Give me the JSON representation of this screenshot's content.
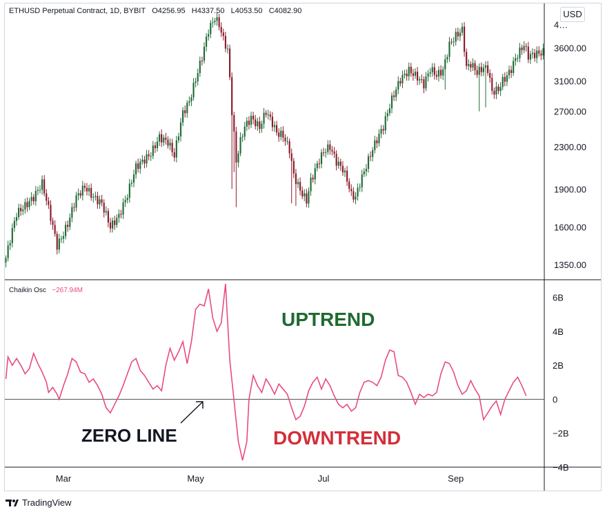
{
  "header": {
    "symbol": "ETHUSD Perpetual Contract, 1D, BYBIT",
    "ohlc_open": "O4256.95",
    "ohlc_high": "H4337.50",
    "ohlc_low": "L4053.50",
    "ohlc_close": "C4082.90",
    "currency_button": "USD"
  },
  "indicator": {
    "name": "Chaikin Osc",
    "value": "−267.94M",
    "color": "#e84a82"
  },
  "annotations": {
    "uptrend": "UPTREND",
    "downtrend": "DOWNTREND",
    "zero_line": "ZERO LINE",
    "uptrend_color": "#1e6a30",
    "downtrend_color": "#d32f3a"
  },
  "colors": {
    "up": "#26a69a_dark",
    "bull": "#1f6b36",
    "bear": "#8b1a2b",
    "osc": "#e84a82"
  },
  "branding": {
    "name": "TradingView"
  },
  "chart_data": [
    {
      "type": "candlestick",
      "title": "ETHUSD Perpetual Contract, 1D, BYBIT",
      "y_scale": "log",
      "ylim": [
        1260,
        4400
      ],
      "y_ticks": [
        "4…",
        "3600.00",
        "3100.00",
        "2700.00",
        "2300.00",
        "1900.00",
        "1600.00",
        "1350.00"
      ],
      "y_tick_values": [
        4000,
        3600,
        3100,
        2700,
        2300,
        1900,
        1600,
        1350
      ],
      "x_ticks": [
        "Mar",
        "May",
        "Jul",
        "Sep"
      ],
      "x_tick_index": [
        27,
        89,
        149,
        211
      ],
      "days": 253,
      "close_anchors": [
        [
          0,
          1390
        ],
        [
          5,
          1700
        ],
        [
          9,
          1760
        ],
        [
          13,
          1830
        ],
        [
          17,
          1950
        ],
        [
          20,
          1740
        ],
        [
          24,
          1470
        ],
        [
          26,
          1520
        ],
        [
          29,
          1620
        ],
        [
          33,
          1830
        ],
        [
          37,
          1920
        ],
        [
          41,
          1830
        ],
        [
          45,
          1780
        ],
        [
          49,
          1600
        ],
        [
          53,
          1680
        ],
        [
          57,
          1850
        ],
        [
          61,
          2100
        ],
        [
          65,
          2170
        ],
        [
          68,
          2230
        ],
        [
          72,
          2400
        ],
        [
          76,
          2350
        ],
        [
          79,
          2210
        ],
        [
          83,
          2680
        ],
        [
          86,
          2820
        ],
        [
          89,
          3120
        ],
        [
          92,
          3450
        ],
        [
          95,
          3900
        ],
        [
          98,
          4120
        ],
        [
          100,
          4000
        ],
        [
          102,
          3740
        ],
        [
          104,
          3560
        ],
        [
          106,
          2700
        ],
        [
          108,
          2150
        ],
        [
          110,
          2360
        ],
        [
          112,
          2520
        ],
        [
          115,
          2620
        ],
        [
          119,
          2510
        ],
        [
          122,
          2700
        ],
        [
          125,
          2560
        ],
        [
          127,
          2450
        ],
        [
          130,
          2420
        ],
        [
          133,
          2270
        ],
        [
          135,
          2020
        ],
        [
          138,
          1890
        ],
        [
          141,
          1800
        ],
        [
          143,
          1970
        ],
        [
          146,
          2120
        ],
        [
          149,
          2250
        ],
        [
          152,
          2300
        ],
        [
          155,
          2150
        ],
        [
          158,
          2080
        ],
        [
          160,
          1980
        ],
        [
          162,
          1850
        ],
        [
          164,
          1830
        ],
        [
          166,
          1950
        ],
        [
          169,
          2110
        ],
        [
          173,
          2330
        ],
        [
          177,
          2520
        ],
        [
          181,
          2850
        ],
        [
          185,
          3120
        ],
        [
          189,
          3250
        ],
        [
          193,
          3150
        ],
        [
          196,
          3050
        ],
        [
          199,
          3270
        ],
        [
          202,
          3180
        ],
        [
          205,
          3250
        ],
        [
          208,
          3650
        ],
        [
          211,
          3800
        ],
        [
          214,
          3900
        ],
        [
          216,
          3290
        ],
        [
          218,
          3350
        ],
        [
          221,
          3220
        ],
        [
          224,
          3290
        ],
        [
          226,
          3270
        ],
        [
          228,
          2950
        ],
        [
          231,
          2980
        ],
        [
          233,
          3100
        ],
        [
          235,
          3170
        ],
        [
          237,
          3270
        ],
        [
          239,
          3430
        ],
        [
          241,
          3540
        ],
        [
          243,
          3650
        ],
        [
          245,
          3470
        ]
      ],
      "spikes": [
        [
          106,
          1900
        ],
        [
          107,
          2050
        ],
        [
          108,
          1750
        ],
        [
          134,
          1780
        ],
        [
          136,
          1760
        ],
        [
          206,
          2980
        ],
        [
          222,
          2700
        ],
        [
          225,
          2750
        ]
      ]
    },
    {
      "type": "line",
      "name": "Chaikin Osc",
      "unit": "B",
      "ylim": [
        -4,
        7
      ],
      "y_ticks": [
        "6B",
        "4B",
        "2B",
        "0",
        "−2B",
        "−4B"
      ],
      "y_tick_values": [
        6,
        4,
        2,
        0,
        -2,
        -4
      ],
      "values_by_day": [
        [
          0,
          1.2
        ],
        [
          1,
          2.5
        ],
        [
          3,
          2.0
        ],
        [
          5,
          2.4
        ],
        [
          7,
          2.0
        ],
        [
          9,
          1.5
        ],
        [
          11,
          1.8
        ],
        [
          13,
          2.7
        ],
        [
          15,
          2.1
        ],
        [
          17,
          1.6
        ],
        [
          19,
          1.0
        ],
        [
          20,
          0.4
        ],
        [
          22,
          0.7
        ],
        [
          24,
          0.3
        ],
        [
          25,
          0.0
        ],
        [
          27,
          0.8
        ],
        [
          29,
          1.5
        ],
        [
          31,
          2.4
        ],
        [
          33,
          2.2
        ],
        [
          35,
          1.6
        ],
        [
          37,
          1.5
        ],
        [
          39,
          1.0
        ],
        [
          41,
          1.2
        ],
        [
          43,
          0.8
        ],
        [
          45,
          0.3
        ],
        [
          47,
          -0.5
        ],
        [
          49,
          -0.8
        ],
        [
          51,
          -0.3
        ],
        [
          53,
          0.2
        ],
        [
          55,
          0.8
        ],
        [
          57,
          1.5
        ],
        [
          59,
          2.2
        ],
        [
          61,
          2.4
        ],
        [
          63,
          1.7
        ],
        [
          65,
          1.4
        ],
        [
          67,
          1.0
        ],
        [
          69,
          0.6
        ],
        [
          71,
          0.8
        ],
        [
          73,
          0.5
        ],
        [
          75,
          2.0
        ],
        [
          77,
          3.0
        ],
        [
          79,
          2.3
        ],
        [
          81,
          2.8
        ],
        [
          83,
          3.4
        ],
        [
          85,
          2.1
        ],
        [
          87,
          3.4
        ],
        [
          89,
          5.3
        ],
        [
          91,
          5.6
        ],
        [
          93,
          5.5
        ],
        [
          95,
          6.5
        ],
        [
          97,
          4.8
        ],
        [
          99,
          4.0
        ],
        [
          101,
          4.5
        ],
        [
          103,
          6.8
        ],
        [
          105,
          2.3
        ],
        [
          107,
          -0.1
        ],
        [
          109,
          -2.5
        ],
        [
          111,
          -3.6
        ],
        [
          113,
          -2.5
        ],
        [
          114,
          0.0
        ],
        [
          116,
          1.4
        ],
        [
          118,
          0.8
        ],
        [
          120,
          0.4
        ],
        [
          122,
          1.2
        ],
        [
          124,
          0.8
        ],
        [
          126,
          0.3
        ],
        [
          128,
          0.9
        ],
        [
          130,
          0.6
        ],
        [
          132,
          0.3
        ],
        [
          134,
          -0.5
        ],
        [
          136,
          -1.2
        ],
        [
          138,
          -1.0
        ],
        [
          140,
          -0.4
        ],
        [
          142,
          0.5
        ],
        [
          144,
          1.0
        ],
        [
          146,
          1.3
        ],
        [
          148,
          0.6
        ],
        [
          150,
          1.2
        ],
        [
          152,
          0.8
        ],
        [
          154,
          0.2
        ],
        [
          156,
          -0.3
        ],
        [
          158,
          -0.5
        ],
        [
          160,
          -0.3
        ],
        [
          162,
          -0.7
        ],
        [
          164,
          -0.5
        ],
        [
          166,
          0.4
        ],
        [
          168,
          1.0
        ],
        [
          170,
          1.1
        ],
        [
          172,
          1.0
        ],
        [
          174,
          0.8
        ],
        [
          176,
          1.3
        ],
        [
          178,
          2.3
        ],
        [
          180,
          2.9
        ],
        [
          182,
          2.8
        ],
        [
          184,
          1.4
        ],
        [
          186,
          1.3
        ],
        [
          188,
          1.0
        ],
        [
          190,
          0.4
        ],
        [
          192,
          -0.3
        ],
        [
          194,
          0.3
        ],
        [
          196,
          0.1
        ],
        [
          198,
          0.3
        ],
        [
          200,
          0.2
        ],
        [
          202,
          0.4
        ],
        [
          204,
          1.5
        ],
        [
          206,
          2.2
        ],
        [
          208,
          2.1
        ],
        [
          210,
          1.6
        ],
        [
          212,
          0.8
        ],
        [
          214,
          0.3
        ],
        [
          216,
          0.5
        ],
        [
          218,
          1.1
        ],
        [
          220,
          0.6
        ],
        [
          222,
          0.2
        ],
        [
          224,
          -1.2
        ],
        [
          226,
          -0.8
        ],
        [
          228,
          -0.4
        ],
        [
          230,
          -0.1
        ],
        [
          232,
          -0.9
        ],
        [
          234,
          0.0
        ],
        [
          236,
          0.5
        ],
        [
          238,
          1.0
        ],
        [
          240,
          1.3
        ],
        [
          242,
          0.8
        ],
        [
          244,
          0.2
        ]
      ]
    }
  ]
}
